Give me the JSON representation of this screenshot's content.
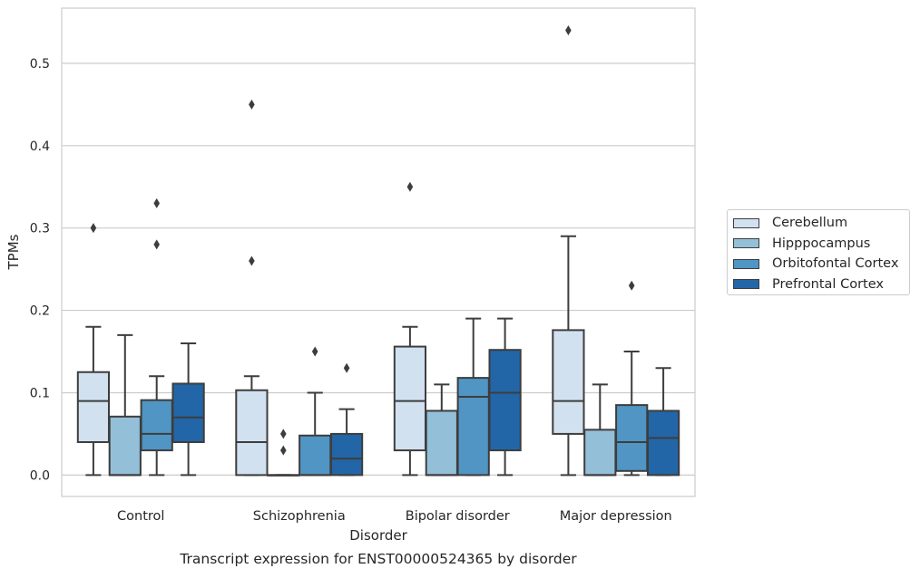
{
  "chart_data": {
    "type": "box",
    "xlabel": "Disorder",
    "ylabel": "TPMs",
    "caption": "Transcript expression for ENST00000524365 by disorder",
    "ylim": [
      -0.026,
      0.567
    ],
    "yticks": [
      0.0,
      0.1,
      0.2,
      0.3,
      0.4,
      0.5
    ],
    "ytick_labels": [
      "0.0",
      "0.1",
      "0.2",
      "0.3",
      "0.4",
      "0.5"
    ],
    "grid": "horizontal",
    "legend_position": "right",
    "categories": [
      "Control",
      "Schizophrenia",
      "Bipolar disorder",
      "Major depression"
    ],
    "series": [
      {
        "name": "Cerebellum",
        "color": "#d2e1f0",
        "boxes": [
          {
            "whislo": 0.0,
            "q1": 0.04,
            "med": 0.09,
            "q3": 0.125,
            "whishi": 0.18,
            "fliers": [
              0.3
            ]
          },
          {
            "whislo": 0.0,
            "q1": 0.0,
            "med": 0.04,
            "q3": 0.103,
            "whishi": 0.12,
            "fliers": [
              0.26,
              0.45
            ]
          },
          {
            "whislo": 0.0,
            "q1": 0.03,
            "med": 0.09,
            "q3": 0.156,
            "whishi": 0.18,
            "fliers": [
              0.35
            ]
          },
          {
            "whislo": 0.0,
            "q1": 0.05,
            "med": 0.09,
            "q3": 0.176,
            "whishi": 0.29,
            "fliers": [
              0.54
            ]
          }
        ]
      },
      {
        "name": "Hipppocampus",
        "color": "#93bfd8",
        "boxes": [
          {
            "whislo": 0.0,
            "q1": 0.0,
            "med": 0.0,
            "q3": 0.071,
            "whishi": 0.17,
            "fliers": []
          },
          {
            "whislo": 0.0,
            "q1": 0.0,
            "med": 0.0,
            "q3": 0.0,
            "whishi": 0.0,
            "fliers": [
              0.03,
              0.05
            ]
          },
          {
            "whislo": 0.0,
            "q1": 0.0,
            "med": 0.0,
            "q3": 0.078,
            "whishi": 0.11,
            "fliers": []
          },
          {
            "whislo": 0.0,
            "q1": 0.0,
            "med": 0.0,
            "q3": 0.055,
            "whishi": 0.11,
            "fliers": []
          }
        ]
      },
      {
        "name": "Orbitofontal Cortex",
        "color": "#5095c3",
        "boxes": [
          {
            "whislo": 0.0,
            "q1": 0.03,
            "med": 0.05,
            "q3": 0.091,
            "whishi": 0.12,
            "fliers": [
              0.28,
              0.33
            ]
          },
          {
            "whislo": 0.0,
            "q1": 0.0,
            "med": 0.0,
            "q3": 0.048,
            "whishi": 0.1,
            "fliers": [
              0.15
            ]
          },
          {
            "whislo": 0.0,
            "q1": 0.0,
            "med": 0.095,
            "q3": 0.118,
            "whishi": 0.19,
            "fliers": []
          },
          {
            "whislo": 0.0,
            "q1": 0.005,
            "med": 0.04,
            "q3": 0.085,
            "whishi": 0.15,
            "fliers": [
              0.23
            ]
          }
        ]
      },
      {
        "name": "Prefrontal Cortex",
        "color": "#2266a7",
        "boxes": [
          {
            "whislo": 0.0,
            "q1": 0.04,
            "med": 0.07,
            "q3": 0.111,
            "whishi": 0.16,
            "fliers": []
          },
          {
            "whislo": 0.0,
            "q1": 0.0,
            "med": 0.02,
            "q3": 0.05,
            "whishi": 0.08,
            "fliers": [
              0.13
            ]
          },
          {
            "whislo": 0.0,
            "q1": 0.03,
            "med": 0.1,
            "q3": 0.152,
            "whishi": 0.19,
            "fliers": []
          },
          {
            "whislo": 0.0,
            "q1": 0.0,
            "med": 0.045,
            "q3": 0.078,
            "whishi": 0.13,
            "fliers": []
          }
        ]
      }
    ]
  }
}
